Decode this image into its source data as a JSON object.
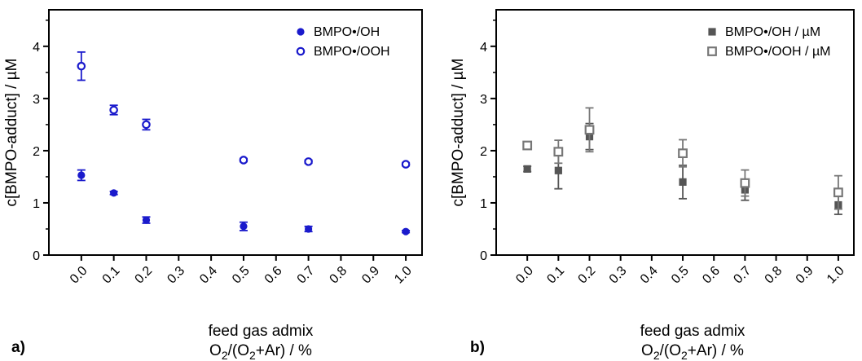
{
  "panels": [
    {
      "label": "a)",
      "xlabel": "feed gas admix",
      "xunit": {
        "pre": "O",
        "s1": "2",
        "mid": "/(O",
        "s2": "2",
        "post": "+Ar) / %"
      },
      "ylabel": "c[BMPO-adduct] / µM",
      "legend": [
        "BMPO•/OH",
        "BMPO•/OOH"
      ]
    },
    {
      "label": "b)",
      "xlabel": "feed gas admix",
      "xunit": {
        "pre": "O",
        "s1": "2",
        "mid": "/(O",
        "s2": "2",
        "post": "+Ar) / %"
      },
      "ylabel": "c[BMPO-adduct] / µM",
      "legend": [
        "BMPO•/OH / µM",
        "BMPO•/OOH / µM"
      ]
    }
  ],
  "chart_data": [
    {
      "type": "scatter",
      "xlim": [
        -0.1,
        1.05
      ],
      "ylim": [
        0,
        4.7
      ],
      "x_ticks": [
        "0.0",
        "0.1",
        "0.2",
        "0.3",
        "0.4",
        "0.5",
        "0.6",
        "0.7",
        "0.8",
        "0.9",
        "1.0"
      ],
      "y_ticks": [
        "0",
        "1",
        "2",
        "3",
        "4"
      ],
      "grid": false,
      "legend_position": "top-right",
      "colors": {
        "series1": "#1a1acc",
        "series2": "#1a1acc"
      },
      "series": [
        {
          "name": "BMPO•/OH",
          "marker": "filled-circle",
          "x": [
            0.0,
            0.1,
            0.2,
            0.5,
            0.7,
            1.0
          ],
          "y": [
            1.53,
            1.19,
            0.67,
            0.55,
            0.5,
            0.45
          ],
          "err": [
            0.1,
            0.03,
            0.06,
            0.08,
            0.05,
            0.02
          ]
        },
        {
          "name": "BMPO•/OOH",
          "marker": "open-circle",
          "x": [
            0.0,
            0.1,
            0.2,
            0.5,
            0.7,
            1.0
          ],
          "y": [
            3.62,
            2.78,
            2.5,
            1.82,
            1.79,
            1.74
          ],
          "err": [
            0.27,
            0.09,
            0.1,
            0.03,
            0.03,
            0.03
          ]
        }
      ]
    },
    {
      "type": "scatter",
      "xlim": [
        -0.1,
        1.05
      ],
      "ylim": [
        0,
        4.7
      ],
      "x_ticks": [
        "0.0",
        "0.1",
        "0.2",
        "0.3",
        "0.4",
        "0.5",
        "0.6",
        "0.7",
        "0.8",
        "0.9",
        "1.0"
      ],
      "y_ticks": [
        "0",
        "1",
        "2",
        "3",
        "4"
      ],
      "grid": false,
      "legend_position": "top-right",
      "colors": {
        "series1": "#555555",
        "series2": "#777777"
      },
      "series": [
        {
          "name": "BMPO•/OH / µM",
          "marker": "filled-square",
          "x": [
            0.0,
            0.1,
            0.2,
            0.5,
            0.7,
            1.0
          ],
          "y": [
            1.65,
            1.62,
            2.27,
            1.4,
            1.25,
            0.96
          ],
          "err": [
            0.05,
            0.35,
            0.25,
            0.32,
            0.2,
            0.18
          ]
        },
        {
          "name": "BMPO•/OOH / µM",
          "marker": "open-square",
          "x": [
            0.0,
            0.1,
            0.2,
            0.5,
            0.7,
            1.0
          ],
          "y": [
            2.1,
            1.98,
            2.4,
            1.95,
            1.38,
            1.2
          ],
          "err": [
            0.04,
            0.22,
            0.42,
            0.26,
            0.25,
            0.32
          ]
        }
      ]
    }
  ]
}
